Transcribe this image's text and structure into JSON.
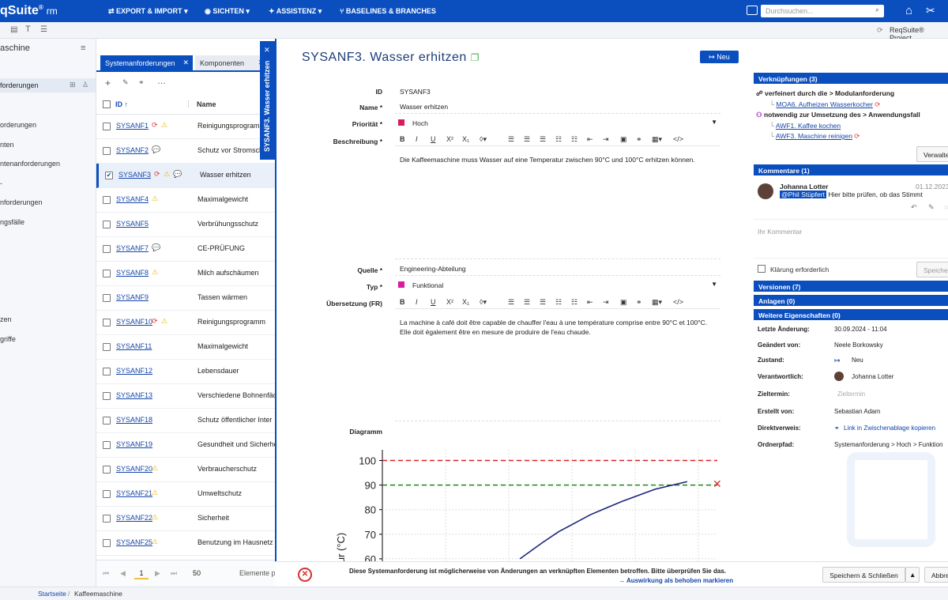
{
  "app": {
    "logo": "qSuite",
    "logo_suffix": "rm",
    "logo_reg": "®"
  },
  "topnav": [
    "EXPORT & IMPORT",
    "SICHTEN",
    "ASSISTENZ",
    "BASELINES & BRANCHES"
  ],
  "search": {
    "placeholder": "Durchsuchen..."
  },
  "subbar": {
    "project": "ReqSuite® Project"
  },
  "left": {
    "header": "aschine",
    "items": [
      "forderungen",
      "orderungen",
      "nten",
      "ntenanforderungen",
      "-",
      "nforderungen",
      "ngsfälle",
      "zen",
      "griffe"
    ]
  },
  "list": {
    "tabs": [
      "Systemanforderungen",
      "Komponenten"
    ],
    "col_id": "ID",
    "col_name": "Name",
    "rows": [
      {
        "id": "SYSANF1",
        "name": "Reinigungsprogram"
      },
      {
        "id": "SYSANF2",
        "name": "Schutz vor Stromschlag"
      },
      {
        "id": "SYSANF3",
        "name": "Wasser erhitzen"
      },
      {
        "id": "SYSANF4",
        "name": "Maximalgewicht"
      },
      {
        "id": "SYSANF5",
        "name": "Verbrühungsschutz"
      },
      {
        "id": "SYSANF7",
        "name": "CE-PRÜFUNG"
      },
      {
        "id": "SYSANF8",
        "name": "Milch aufschäumen"
      },
      {
        "id": "SYSANF9",
        "name": "Tassen wärmen"
      },
      {
        "id": "SYSANF10",
        "name": "Reinigungsprogramm"
      },
      {
        "id": "SYSANF11",
        "name": "Maximalgewicht"
      },
      {
        "id": "SYSANF12",
        "name": "Lebensdauer"
      },
      {
        "id": "SYSANF13",
        "name": "Verschiedene Bohnenfäc"
      },
      {
        "id": "SYSANF18",
        "name": "Schutz öffentlicher Inter"
      },
      {
        "id": "SYSANF19",
        "name": "Gesundheit und Sicherhe"
      },
      {
        "id": "SYSANF20",
        "name": "Verbraucherschutz"
      },
      {
        "id": "SYSANF21",
        "name": "Umweltschutz"
      },
      {
        "id": "SYSANF22",
        "name": "Sicherheit"
      },
      {
        "id": "SYSANF25",
        "name": "Benutzung im Hausnetz"
      }
    ],
    "pager": {
      "page": "1",
      "size": "50",
      "label": "Elemente p"
    }
  },
  "vertical_tab": "SYSANF3. Wasser erhitzen",
  "detail": {
    "title": "SYSANF3. Wasser erhitzen",
    "new_button": "Neu",
    "labels": {
      "id": "ID",
      "name": "Name",
      "prio": "Priorität",
      "desc": "Beschreibung",
      "source": "Quelle",
      "type": "Typ",
      "trans": "Übersetzung (FR)",
      "diagram": "Diagramm"
    },
    "id": "SYSANF3",
    "name": "Wasser erhitzen",
    "priority": "Hoch",
    "description": "Die Kaffeemaschine muss Wasser auf eine Temperatur zwischen 90°C und 100°C erhitzen können.",
    "source": "Engineering-Abteilung",
    "type": "Funktional",
    "translation": "La machine à café doit être capable de chauffer l'eau à une température comprise entre 90°C et 100°C. Elle doit également être en mesure de produire de l'eau chaude.",
    "priority_color": "#d81b60",
    "type_color": "#d81b9f"
  },
  "chart_data": {
    "type": "line",
    "ylabel": "atur (°C)",
    "yticks": [
      60,
      70,
      80,
      90,
      100
    ],
    "ylim": [
      60,
      104
    ],
    "hlines": [
      {
        "value": 100,
        "color": "#d22",
        "style": "dashed"
      },
      {
        "value": 90,
        "color": "#1a8a1a",
        "style": "dashed"
      }
    ],
    "series": [
      {
        "color": "#1a237e",
        "x": [
          0.48,
          0.55,
          0.6,
          0.7,
          0.8,
          0.9,
          1.0
        ],
        "y": [
          60,
          66.6,
          71,
          78,
          83.5,
          88.3,
          91.4
        ]
      }
    ]
  },
  "right": {
    "links_header": "Verknüpfungen (3)",
    "link_group1": "verfeinert durch die > Modulanforderung",
    "link1": "MOA6. Aufheizen Wasserkocher",
    "link_group2": "notwendig zur Umsetzung des > Anwendungsfall",
    "link2": "AWF1. Kaffee kochen",
    "link3": "AWF3. Maschine reinigen",
    "manage": "Verwalte",
    "comments_header": "Kommentare (1)",
    "comment_author": "Johanna Lotter",
    "comment_date": "01.12.2023",
    "comment_mention": "@Phil Stüpfert",
    "comment_text": "Hier bitte prüfen, ob das Stimmt",
    "comment_placeholder": "Ihr Kommentar",
    "clarify": "Klärung erforderlich",
    "save_short": "Speicher",
    "versions_header": "Versionen (7)",
    "attachments_header": "Anlagen (0)",
    "props_header": "Weitere Eigenschaften (0)",
    "props": [
      {
        "label": "Letzte Änderung:",
        "value": "30.09.2024 - 11:04"
      },
      {
        "label": "Geändert von:",
        "value": "Neele Borkowsky"
      },
      {
        "label": "Zustand:",
        "value": "Neu"
      },
      {
        "label": "Verantwortlich:",
        "value": "Johanna Lotter"
      },
      {
        "label": "Zieltermin:",
        "value": "Zieltermin"
      },
      {
        "label": "Erstellt von:",
        "value": "Sebastian Adam"
      },
      {
        "label": "Direktverweis:",
        "value": "Link in Zwischenablage kopieren"
      },
      {
        "label": "Ordnerpfad:",
        "value": "Systemanforderung > Hoch > Funktion"
      }
    ]
  },
  "bottom": {
    "warning": "Diese Systemanforderung ist möglicherweise von Änderungen an verknüpften Elementen betroffen. Bitte überprüfen Sie das.",
    "resolve": "Auswirkung als behoben markieren",
    "save_close": "Speichern & Schließen",
    "cancel": "Abbre"
  },
  "breadcrumb": [
    "Startseite",
    "Kaffeemaschine"
  ]
}
